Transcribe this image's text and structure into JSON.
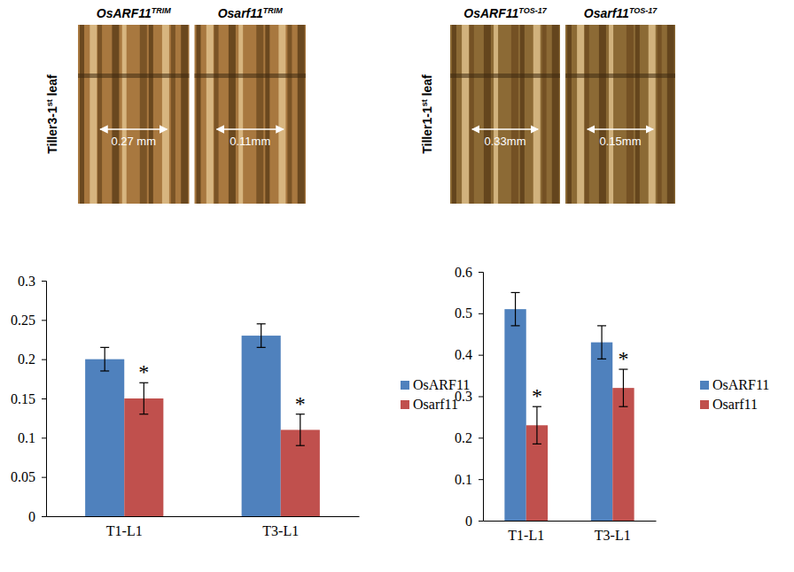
{
  "images": [
    {
      "side_label": {
        "text": "Tiller3-1",
        "sup": "st",
        "rest": " leaf"
      },
      "panels": [
        {
          "label": {
            "text": "OsARF11",
            "sup": "TRIM"
          },
          "measure": "0.27 mm"
        },
        {
          "label": {
            "text": "Osarf11",
            "sup": "TRIM"
          },
          "measure": "0.11mm"
        }
      ]
    },
    {
      "side_label": {
        "text": "Tiller1-1",
        "sup": "st",
        "rest": " leaf"
      },
      "panels": [
        {
          "label": {
            "text": "OsARF11",
            "sup": "TOS-17"
          },
          "measure": "0.33mm"
        },
        {
          "label": {
            "text": "Osarf11",
            "sup": "TOS-17"
          },
          "measure": "0.15mm"
        }
      ]
    }
  ],
  "chart_data": [
    {
      "type": "bar",
      "categories": [
        "T1-L1",
        "T3-L1"
      ],
      "series": [
        {
          "name": "OsARF11",
          "color": "#4f81bd",
          "values": [
            0.2,
            0.23
          ],
          "errors": [
            0.015,
            0.015
          ],
          "significance": [
            null,
            null
          ]
        },
        {
          "name": "Osarf11",
          "color": "#c0504d",
          "values": [
            0.15,
            0.11
          ],
          "errors": [
            0.02,
            0.02
          ],
          "significance": [
            "*",
            "*"
          ]
        }
      ],
      "ylim": [
        0,
        0.3
      ],
      "yticks": [
        0,
        0.05,
        0.1,
        0.15,
        0.2,
        0.25,
        0.3
      ],
      "grid": false,
      "legend": "right"
    },
    {
      "type": "bar",
      "categories": [
        "T1-L1",
        "T3-L1"
      ],
      "series": [
        {
          "name": "OsARF11",
          "color": "#4f81bd",
          "values": [
            0.51,
            0.43
          ],
          "errors": [
            0.04,
            0.04
          ],
          "significance": [
            null,
            null
          ]
        },
        {
          "name": "Osarf11",
          "color": "#c0504d",
          "values": [
            0.23,
            0.32
          ],
          "errors": [
            0.045,
            0.045
          ],
          "significance": [
            "*",
            "*"
          ]
        }
      ],
      "ylim": [
        0,
        0.6
      ],
      "yticks": [
        0,
        0.1,
        0.2,
        0.3,
        0.4,
        0.5,
        0.6
      ],
      "grid": false,
      "legend": "right"
    }
  ]
}
